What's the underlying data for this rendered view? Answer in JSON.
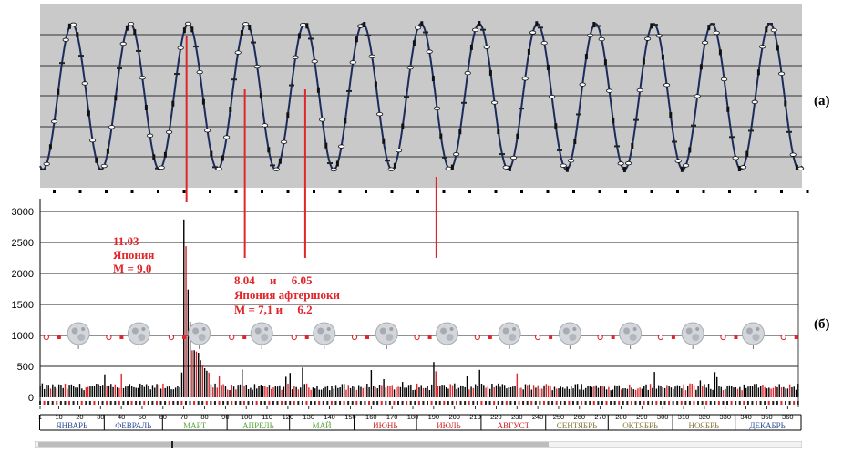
{
  "panel_labels": {
    "a": "(а)",
    "b": "(б)"
  },
  "annotations": {
    "main_date": "11.03",
    "main_country": "Япония",
    "main_mag": "M = 9,0",
    "after_dates": "8.04     и     6.05",
    "after_title": "Япония афтершоки",
    "after_mags": "M = 7,1 и     6.2"
  },
  "chart_data": [
    {
      "type": "line",
      "panel": "a",
      "description_series": "periodic oscillation, ~13 cycles over the year",
      "cycles": 13,
      "grid": true,
      "background": "#c9c9c9",
      "line_color": "#1b2c5c"
    },
    {
      "type": "bar",
      "panel": "b",
      "xlim": [
        1,
        366
      ],
      "ylim": [
        0,
        3000
      ],
      "yticks": [
        0,
        500,
        1000,
        1500,
        2000,
        2500,
        3000
      ],
      "ytick_labels": [
        "0",
        "500",
        "1000",
        "1500",
        "2000",
        "2500",
        "3000"
      ],
      "xticks": [
        1,
        10,
        20,
        30,
        40,
        50,
        60,
        70,
        80,
        90,
        100,
        110,
        120,
        130,
        140,
        150,
        160,
        170,
        180,
        190,
        200,
        210,
        220,
        230,
        240,
        250,
        260,
        270,
        280,
        290,
        300,
        310,
        320,
        330,
        340,
        350,
        360
      ],
      "months": [
        {
          "label": "ЯНВАРЬ",
          "start": 1,
          "end": 31,
          "color": "#2f4f9a"
        },
        {
          "label": "ФЕВРАЛЬ",
          "start": 32,
          "end": 59,
          "color": "#2f4f9a"
        },
        {
          "label": "МАРТ",
          "start": 60,
          "end": 90,
          "color": "#5aa83a"
        },
        {
          "label": "АПРЕЛЬ",
          "start": 91,
          "end": 120,
          "color": "#5aa83a"
        },
        {
          "label": "МАЙ",
          "start": 121,
          "end": 151,
          "color": "#5aa83a"
        },
        {
          "label": "ИЮНЬ",
          "start": 152,
          "end": 181,
          "color": "#d0262a"
        },
        {
          "label": "ИЮЛЬ",
          "start": 182,
          "end": 212,
          "color": "#d0262a"
        },
        {
          "label": "АВГУСТ",
          "start": 213,
          "end": 243,
          "color": "#d0262a"
        },
        {
          "label": "СЕНТЯБРЬ",
          "start": 244,
          "end": 273,
          "color": "#8a7a3a"
        },
        {
          "label": "ОКТЯБРЬ",
          "start": 274,
          "end": 304,
          "color": "#8a7a3a"
        },
        {
          "label": "НОЯБРЬ",
          "start": 305,
          "end": 334,
          "color": "#8a7a3a"
        },
        {
          "label": "ДЕКАБРЬ",
          "start": 335,
          "end": 365,
          "color": "#2f4f9a"
        }
      ],
      "baseline_level": 170,
      "peaks": [
        {
          "day": 70,
          "value": 2870,
          "color": "#000000"
        },
        {
          "day": 71,
          "value": 2440,
          "color": "#d0262a"
        },
        {
          "day": 72,
          "value": 1740,
          "color": "#000000"
        },
        {
          "day": 73,
          "value": 1220,
          "color": "#000000"
        },
        {
          "day": 74,
          "value": 760,
          "color": "#d0262a"
        },
        {
          "day": 75,
          "value": 760,
          "color": "#000000"
        },
        {
          "day": 76,
          "value": 740,
          "color": "#d0262a"
        },
        {
          "day": 77,
          "value": 720,
          "color": "#000000"
        },
        {
          "day": 78,
          "value": 600,
          "color": "#000000"
        },
        {
          "day": 79,
          "value": 520,
          "color": "#d0262a"
        },
        {
          "day": 80,
          "value": 470,
          "color": "#000000"
        },
        {
          "day": 81,
          "value": 430,
          "color": "#000000"
        },
        {
          "day": 82,
          "value": 400,
          "color": "#d0262a"
        },
        {
          "day": 98,
          "value": 450,
          "color": "#000000"
        },
        {
          "day": 127,
          "value": 480,
          "color": "#000000"
        },
        {
          "day": 190,
          "value": 570,
          "color": "#000000"
        },
        {
          "day": 191,
          "value": 420,
          "color": "#d0262a"
        }
      ],
      "full_moon_days": [
        19,
        48,
        77,
        107,
        137,
        167,
        196,
        226,
        255,
        284,
        314,
        343
      ],
      "new_moon_days": [
        4,
        34,
        64,
        93,
        123,
        152,
        182,
        211,
        240,
        270,
        299,
        329,
        358
      ],
      "event_lines_days": [
        70,
        98,
        127,
        190
      ]
    }
  ],
  "colors": {
    "red": "#e0262a",
    "grid": "#222222",
    "panel_a_bg": "#c9c9c9"
  }
}
